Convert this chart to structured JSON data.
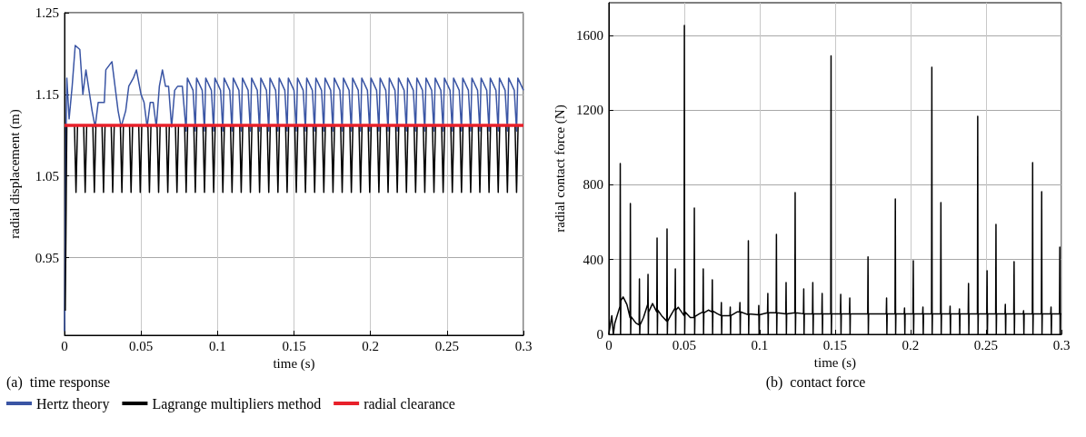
{
  "chart_data": [
    {
      "type": "line",
      "title": "(a)  time response",
      "xlabel": "time (s)",
      "ylabel": "radial displacement (m)",
      "xlim": [
        0,
        0.3
      ],
      "xticks": [
        0,
        0.05,
        0.1,
        0.15,
        0.2,
        0.25,
        0.3
      ],
      "ylim": [
        0.855,
        1.25
      ],
      "yticks": [
        0.95,
        1.05,
        1.15,
        1.25
      ],
      "grid": true,
      "legend": "bottom",
      "series": [
        {
          "name": "Hertz theory",
          "color": "#3a55a4",
          "x": [
            0,
            0.001,
            0.0015,
            0.003,
            0.005,
            0.007,
            0.01,
            0.012,
            0.014,
            0.018,
            0.02,
            0.022,
            0.026,
            0.027,
            0.031,
            0.033,
            0.035,
            0.037,
            0.04,
            0.042,
            0.045,
            0.047,
            0.05,
            0.052,
            0.054,
            0.056,
            0.058,
            0.06,
            0.062,
            0.064,
            0.066,
            0.068,
            0.07,
            0.072,
            0.074,
            0.077,
            0.0795,
            0.0803,
            0.084,
            0.0855,
            0.0863,
            0.09,
            0.0915,
            0.0923,
            0.096,
            0.0975,
            0.0983,
            0.102,
            0.1035,
            0.1043,
            0.108,
            0.1095,
            0.1103,
            0.114,
            0.1155,
            0.1163,
            0.12,
            0.1215,
            0.1223,
            0.126,
            0.1275,
            0.1283,
            0.132,
            0.1335,
            0.1343,
            0.138,
            0.1395,
            0.1403,
            0.144,
            0.1455,
            0.1463,
            0.15,
            0.1515,
            0.1523,
            0.156,
            0.1575,
            0.1583,
            0.162,
            0.1635,
            0.1643,
            0.168,
            0.1695,
            0.1703,
            0.174,
            0.1755,
            0.1763,
            0.18,
            0.1815,
            0.1823,
            0.186,
            0.1875,
            0.1883,
            0.192,
            0.1935,
            0.1943,
            0.198,
            0.1995,
            0.2003,
            0.204,
            0.2055,
            0.2063,
            0.21,
            0.2115,
            0.2123,
            0.216,
            0.2175,
            0.2183,
            0.222,
            0.2235,
            0.2243,
            0.228,
            0.2295,
            0.2303,
            0.234,
            0.2355,
            0.2363,
            0.24,
            0.2415,
            0.2423,
            0.246,
            0.2475,
            0.2483,
            0.252,
            0.2535,
            0.2543,
            0.258,
            0.2595,
            0.2603,
            0.264,
            0.2655,
            0.2663,
            0.27,
            0.2715,
            0.2723,
            0.276,
            0.2775,
            0.2783,
            0.282,
            0.2835,
            0.2843,
            0.288,
            0.2895,
            0.2903,
            0.294,
            0.2955,
            0.2963,
            0.3
          ],
          "values": [
            0.86,
            1.1,
            1.17,
            1.12,
            1.16,
            1.21,
            1.205,
            1.15,
            1.18,
            1.13,
            1.11,
            1.14,
            1.14,
            1.18,
            1.19,
            1.16,
            1.13,
            1.11,
            1.13,
            1.16,
            1.17,
            1.18,
            1.15,
            1.14,
            1.11,
            1.14,
            1.14,
            1.11,
            1.16,
            1.18,
            1.16,
            1.16,
            1.11,
            1.155,
            1.16,
            1.16,
            1.105,
            1.17,
            1.155,
            1.105,
            1.17,
            1.155,
            1.105,
            1.17,
            1.155,
            1.105,
            1.17,
            1.155,
            1.105,
            1.17,
            1.155,
            1.105,
            1.17,
            1.155,
            1.105,
            1.17,
            1.155,
            1.105,
            1.17,
            1.155,
            1.105,
            1.17,
            1.155,
            1.105,
            1.17,
            1.155,
            1.105,
            1.17,
            1.155,
            1.105,
            1.17,
            1.155,
            1.105,
            1.17,
            1.155,
            1.105,
            1.17,
            1.155,
            1.105,
            1.17,
            1.155,
            1.105,
            1.17,
            1.155,
            1.105,
            1.17,
            1.155,
            1.105,
            1.17,
            1.155,
            1.105,
            1.17,
            1.155,
            1.105,
            1.17,
            1.155,
            1.105,
            1.17,
            1.155,
            1.105,
            1.17,
            1.155,
            1.105,
            1.17,
            1.155,
            1.105,
            1.17,
            1.155,
            1.105,
            1.17,
            1.155,
            1.105,
            1.17,
            1.155,
            1.105,
            1.17,
            1.155,
            1.105,
            1.17,
            1.155,
            1.105,
            1.17,
            1.155,
            1.105,
            1.17,
            1.155,
            1.105,
            1.17,
            1.155,
            1.105,
            1.17,
            1.155,
            1.105,
            1.17,
            1.155,
            1.105,
            1.17,
            1.155,
            1.105,
            1.17,
            1.155,
            1.105,
            1.17,
            1.155,
            1.105,
            1.17,
            1.155
          ]
        },
        {
          "name": "Lagrange multipliers method",
          "color": "#000000",
          "x": [
            0.0005,
            0.0015,
            0.0065,
            0.0075,
            0.0085,
            0.0125,
            0.0135,
            0.0145,
            0.0185,
            0.0195,
            0.0205,
            0.0245,
            0.0255,
            0.0265,
            0.0305,
            0.0315,
            0.0325,
            0.0365,
            0.0375,
            0.0385,
            0.0425,
            0.0435,
            0.0445,
            0.0485,
            0.0495,
            0.0505,
            0.0545,
            0.0555,
            0.0565,
            0.0605,
            0.0615,
            0.0625,
            0.0665,
            0.0675,
            0.0685,
            0.0725,
            0.0735,
            0.0745,
            0.0785,
            0.0795,
            0.0805,
            0.0845,
            0.0855,
            0.0865,
            0.0905,
            0.0915,
            0.0925,
            0.0965,
            0.0975,
            0.0985,
            0.1025,
            0.1035,
            0.1045,
            0.1085,
            0.1095,
            0.1105,
            0.1145,
            0.1155,
            0.1165,
            0.1205,
            0.1215,
            0.1225,
            0.1265,
            0.1275,
            0.1285,
            0.1325,
            0.1335,
            0.1345,
            0.1385,
            0.1395,
            0.1405,
            0.1445,
            0.1455,
            0.1465,
            0.1505,
            0.1515,
            0.1525,
            0.1565,
            0.1575,
            0.1585,
            0.1625,
            0.1635,
            0.1645,
            0.1685,
            0.1695,
            0.1705,
            0.1745,
            0.1755,
            0.1765,
            0.1805,
            0.1815,
            0.1825,
            0.1865,
            0.1875,
            0.1885,
            0.1925,
            0.1935,
            0.1945,
            0.1985,
            0.1995,
            0.2005,
            0.2045,
            0.2055,
            0.2065,
            0.2105,
            0.2115,
            0.2125,
            0.2165,
            0.2175,
            0.2185,
            0.2225,
            0.2235,
            0.2245,
            0.2285,
            0.2295,
            0.2305,
            0.2345,
            0.2355,
            0.2365,
            0.2405,
            0.2415,
            0.2425,
            0.2465,
            0.2475,
            0.2485,
            0.2525,
            0.2535,
            0.2545,
            0.2585,
            0.2595,
            0.2605,
            0.2645,
            0.2655,
            0.2665,
            0.2705,
            0.2715,
            0.2725,
            0.2765,
            0.2775,
            0.2785,
            0.2825,
            0.2835,
            0.2845,
            0.2885,
            0.2895,
            0.2905,
            0.2945,
            0.2955,
            0.2965
          ],
          "values": [
            0.885,
            1.112,
            1.112,
            1.03,
            1.112,
            1.112,
            1.03,
            1.112,
            1.112,
            1.03,
            1.112,
            1.112,
            1.03,
            1.112,
            1.112,
            1.03,
            1.112,
            1.112,
            1.03,
            1.112,
            1.112,
            1.03,
            1.112,
            1.112,
            1.03,
            1.112,
            1.112,
            1.03,
            1.112,
            1.112,
            1.03,
            1.112,
            1.112,
            1.03,
            1.112,
            1.112,
            1.03,
            1.112,
            1.112,
            1.03,
            1.112,
            1.112,
            1.03,
            1.112,
            1.112,
            1.03,
            1.112,
            1.112,
            1.03,
            1.112,
            1.112,
            1.03,
            1.112,
            1.112,
            1.03,
            1.112,
            1.112,
            1.03,
            1.112,
            1.112,
            1.03,
            1.112,
            1.112,
            1.03,
            1.112,
            1.112,
            1.03,
            1.112,
            1.112,
            1.03,
            1.112,
            1.112,
            1.03,
            1.112,
            1.112,
            1.03,
            1.112,
            1.112,
            1.03,
            1.112,
            1.112,
            1.03,
            1.112,
            1.112,
            1.03,
            1.112,
            1.112,
            1.03,
            1.112,
            1.112,
            1.03,
            1.112,
            1.112,
            1.03,
            1.112,
            1.112,
            1.03,
            1.112,
            1.112,
            1.03,
            1.112,
            1.112,
            1.03,
            1.112,
            1.112,
            1.03,
            1.112,
            1.112,
            1.03,
            1.112,
            1.112,
            1.03,
            1.112,
            1.112,
            1.03,
            1.112,
            1.112,
            1.03,
            1.112,
            1.112,
            1.03,
            1.112,
            1.112,
            1.03,
            1.112,
            1.112,
            1.03,
            1.112,
            1.112,
            1.03,
            1.112,
            1.112,
            1.03,
            1.112,
            1.112,
            1.03,
            1.112,
            1.112,
            1.03,
            1.112,
            1.112,
            1.03,
            1.112,
            1.112,
            1.03,
            1.112,
            1.112,
            1.03,
            1.112
          ]
        },
        {
          "name": "radial clearance",
          "color": "#e8202a",
          "x": [
            0,
            0.3
          ],
          "values": [
            1.112,
            1.112
          ]
        }
      ]
    },
    {
      "type": "line",
      "title": "(b)  contact force",
      "xlabel": "time (s)",
      "ylabel": "radial contact force (N)",
      "xlim": [
        0,
        0.3
      ],
      "xticks": [
        0,
        0.05,
        0.1,
        0.15,
        0.2,
        0.25,
        0.3
      ],
      "ylim": [
        0,
        1775
      ],
      "yticks": [
        0,
        400,
        800,
        1200,
        1600
      ],
      "grid": true,
      "series": [
        {
          "color": "#000000",
          "x": [
            0,
            0.002,
            0.003,
            0.004,
            0.0074,
            0.0076,
            0.0078,
            0.008,
            0.0095,
            0.012,
            0.0141,
            0.0143,
            0.0145,
            0.0147,
            0.018,
            0.0201,
            0.0203,
            0.0205,
            0.0207,
            0.023,
            0.0258,
            0.026,
            0.0262,
            0.0264,
            0.029,
            0.0318,
            0.032,
            0.0322,
            0.0324,
            0.035,
            0.0384,
            0.0386,
            0.0388,
            0.039,
            0.041,
            0.0439,
            0.0441,
            0.0443,
            0.0445,
            0.046,
            0.0499,
            0.0501,
            0.0503,
            0.0505,
            0.054,
            0.0565,
            0.0567,
            0.0569,
            0.0571,
            0.06,
            0.0624,
            0.0626,
            0.0628,
            0.063,
            0.066,
            0.0684,
            0.0686,
            0.0688,
            0.069,
            0.072,
            0.0744,
            0.0746,
            0.0748,
            0.075,
            0.0803,
            0.0805,
            0.0807,
            0.0809,
            0.085,
            0.0867,
            0.0869,
            0.0871,
            0.0873,
            0.0923,
            0.0925,
            0.0927,
            0.0929,
            0.0992,
            0.0994,
            0.0996,
            0.0998,
            0.1052,
            0.1054,
            0.1056,
            0.1058,
            0.1109,
            0.1111,
            0.1113,
            0.1115,
            0.1173,
            0.1175,
            0.1177,
            0.1179,
            0.1233,
            0.1235,
            0.1237,
            0.1239,
            0.129,
            0.1292,
            0.1294,
            0.1296,
            0.135,
            0.1352,
            0.1354,
            0.1356,
            0.1412,
            0.1414,
            0.1416,
            0.1418,
            0.1471,
            0.1473,
            0.1475,
            0.1477,
            0.1535,
            0.1537,
            0.1539,
            0.1541,
            0.1595,
            0.1597,
            0.1599,
            0.1601,
            0.1716,
            0.1718,
            0.172,
            0.1722,
            0.1839,
            0.1841,
            0.1843,
            0.1845,
            0.1897,
            0.1899,
            0.1901,
            0.1903,
            0.1958,
            0.196,
            0.1962,
            0.1964,
            0.2016,
            0.2018,
            0.202,
            0.2022,
            0.208,
            0.2082,
            0.2084,
            0.2086,
            0.2139,
            0.2141,
            0.2143,
            0.2145,
            0.2199,
            0.2201,
            0.2203,
            0.2205,
            0.226,
            0.2262,
            0.2264,
            0.2266,
            0.2322,
            0.2324,
            0.2326,
            0.2328,
            0.2382,
            0.2384,
            0.2386,
            0.2388,
            0.2443,
            0.2445,
            0.2447,
            0.2449,
            0.2505,
            0.2507,
            0.2509,
            0.2511,
            0.2564,
            0.2566,
            0.2568,
            0.257,
            0.2626,
            0.2628,
            0.263,
            0.2632,
            0.2684,
            0.2686,
            0.2688,
            0.269,
            0.2747,
            0.2749,
            0.2751,
            0.2753,
            0.2807,
            0.2809,
            0.2811,
            0.2813,
            0.2867,
            0.2869,
            0.2871,
            0.2873,
            0.2929,
            0.2931,
            0.2933,
            0.2935,
            0.2987,
            0.2989,
            0.2991,
            0.2993,
            0.3
          ],
          "values": [
            0,
            100,
            0,
            60,
            150,
            914,
            0,
            180,
            200,
            160,
            90,
            700,
            0,
            95,
            60,
            50,
            297,
            0,
            50,
            90,
            160,
            321,
            0,
            120,
            165,
            120,
            515,
            0,
            130,
            100,
            70,
            564,
            0,
            70,
            100,
            140,
            350,
            0,
            130,
            145,
            100,
            1654,
            0,
            120,
            90,
            90,
            676,
            0,
            95,
            110,
            120,
            350,
            0,
            115,
            130,
            120,
            292,
            0,
            125,
            110,
            100,
            170,
            0,
            100,
            100,
            146,
            0,
            100,
            120,
            120,
            170,
            0,
            120,
            105,
            501,
            0,
            110,
            105,
            155,
            0,
            105,
            115,
            219,
            0,
            115,
            115,
            535,
            0,
            115,
            110,
            277,
            0,
            110,
            115,
            759,
            0,
            115,
            110,
            243,
            0,
            110,
            110,
            277,
            0,
            110,
            110,
            219,
            0,
            110,
            110,
            1490,
            0,
            110,
            110,
            214,
            0,
            110,
            110,
            195,
            0,
            110,
            110,
            414,
            0,
            110,
            110,
            195,
            0,
            110,
            110,
            725,
            0,
            110,
            110,
            141,
            0,
            110,
            110,
            394,
            0,
            110,
            110,
            146,
            0,
            110,
            110,
            1430,
            0,
            110,
            110,
            705,
            0,
            110,
            110,
            151,
            0,
            110,
            110,
            136,
            0,
            110,
            110,
            272,
            0,
            110,
            110,
            1167,
            0,
            110,
            110,
            340,
            0,
            110,
            110,
            589,
            0,
            110,
            110,
            160,
            0,
            110,
            110,
            389,
            0,
            110,
            110,
            126,
            0,
            110,
            110,
            919,
            0,
            110,
            110,
            764,
            0,
            110,
            110,
            146,
            0,
            110,
            110,
            467,
            0,
            110,
            110
          ]
        }
      ]
    }
  ]
}
